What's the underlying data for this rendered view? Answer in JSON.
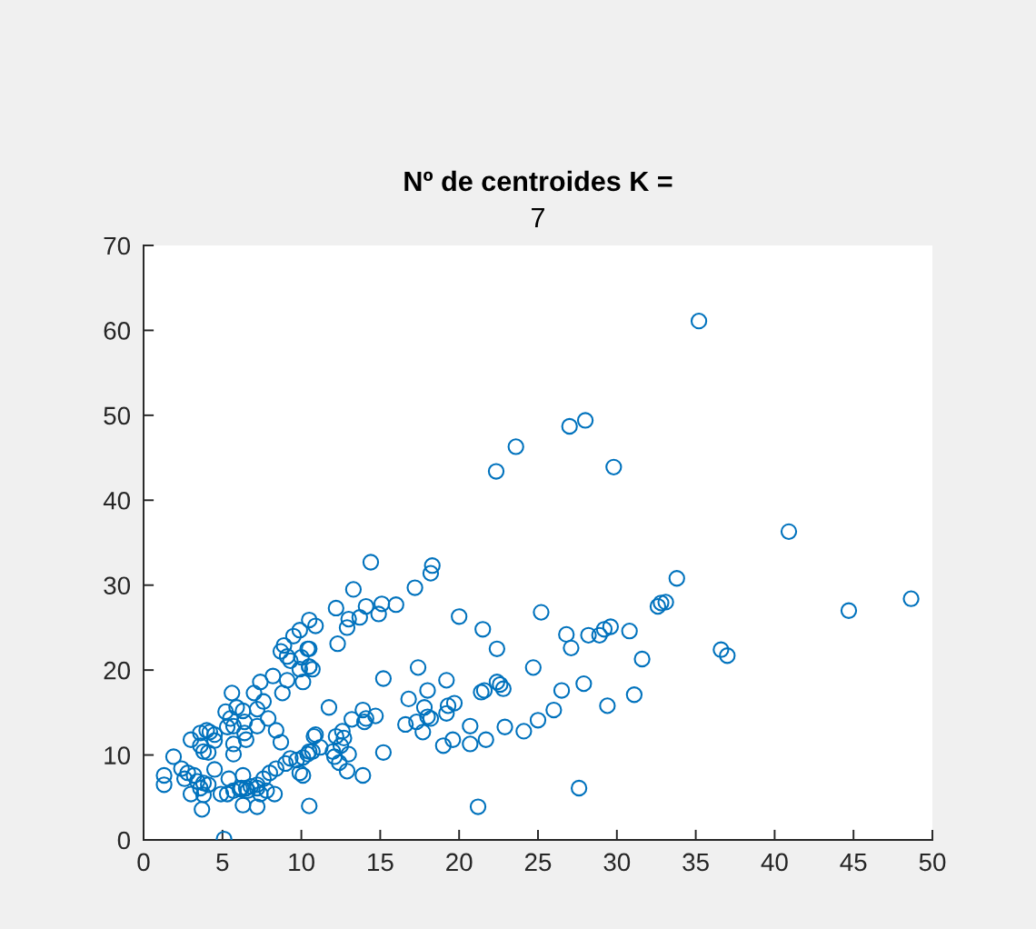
{
  "chart_data": {
    "type": "scatter",
    "title": "Nº de centroides K =",
    "subtitle": "7",
    "x": [
      35.2,
      22.35,
      23.6,
      27.0,
      28.0,
      29.8,
      40.9,
      48.65,
      44.7,
      25.2,
      32.6,
      32.8,
      33.1,
      33.8,
      21.5,
      26.8,
      28.2,
      28.9,
      29.2,
      29.6,
      30.8,
      27.1,
      22.4,
      36.6,
      37.0,
      31.6,
      24.7,
      22.4,
      22.6,
      22.8,
      21.6,
      21.4,
      26.5,
      27.9,
      31.1,
      29.4,
      26.0,
      25.0,
      22.9,
      24.1,
      21.7,
      27.6,
      21.2,
      14.4,
      18.3,
      18.2,
      17.2,
      13.3,
      12.2,
      14.1,
      15.1,
      16.0,
      14.9,
      13.7,
      13.0,
      12.9,
      12.3,
      10.5,
      10.9,
      10.5,
      10.5,
      10.7,
      20.0,
      15.2,
      17.4,
      19.2,
      16.8,
      18.0,
      17.8,
      18.0,
      18.2,
      16.6,
      17.3,
      17.7,
      19.3,
      19.7,
      19.2,
      20.7,
      19.6,
      19.0,
      20.7,
      11.75,
      13.9,
      14.1,
      14.0,
      14.7,
      13.2,
      12.6,
      12.2,
      12.7,
      12.5,
      13.0,
      12.4,
      12.9,
      13.9,
      12.0,
      12.1,
      10.8,
      11.2,
      10.5,
      15.2,
      10.5,
      9.9,
      9.5,
      10.4,
      10.0,
      10.5,
      9.9,
      8.9,
      8.7,
      9.1,
      9.3,
      8.2,
      9.1,
      8.8,
      10.1,
      7.4,
      7.0,
      7.6,
      7.9,
      5.6,
      5.9,
      6.3,
      6.4,
      5.2,
      5.5,
      5.3,
      6.4,
      6.5,
      5.7,
      7.2,
      8.4,
      8.7,
      7.2,
      3.0,
      3.6,
      4.0,
      4.2,
      4.5,
      4.5,
      3.6,
      3.8,
      4.1,
      5.7,
      1.9,
      1.3,
      1.3,
      2.4,
      2.8,
      2.6,
      3.2,
      3.4,
      3.8,
      3.6,
      4.1,
      3.0,
      3.8,
      3.7,
      4.5,
      5.4,
      4.9,
      5.3,
      5.7,
      6.1,
      6.5,
      6.8,
      7.2,
      7.6,
      8.0,
      8.4,
      9.0,
      9.3,
      9.7,
      10.1,
      10.4,
      10.7,
      10.9,
      6.3,
      6.2,
      6.6,
      7.2,
      7.8,
      8.3,
      7.4,
      6.3,
      7.2,
      5.1,
      9.9,
      10.1,
      5.7
    ],
    "values": [
      61.1,
      43.4,
      46.3,
      48.7,
      49.4,
      43.9,
      36.3,
      28.4,
      27.0,
      26.8,
      27.5,
      27.9,
      28.0,
      30.8,
      24.8,
      24.2,
      24.1,
      24.1,
      24.8,
      25.1,
      24.6,
      22.6,
      22.5,
      22.4,
      21.7,
      21.3,
      20.3,
      18.6,
      18.3,
      17.8,
      17.6,
      17.4,
      17.6,
      18.4,
      17.1,
      15.8,
      15.3,
      14.1,
      13.3,
      12.8,
      11.8,
      6.1,
      3.9,
      32.7,
      32.3,
      31.4,
      29.7,
      29.5,
      27.3,
      27.5,
      27.8,
      27.7,
      26.6,
      26.2,
      26.0,
      25.0,
      23.1,
      25.9,
      25.2,
      22.5,
      20.4,
      20.1,
      26.3,
      19.0,
      20.3,
      18.8,
      16.6,
      17.6,
      15.6,
      14.5,
      14.3,
      13.6,
      13.9,
      12.7,
      15.8,
      16.1,
      14.9,
      13.4,
      11.8,
      11.1,
      11.3,
      15.6,
      15.3,
      14.3,
      13.9,
      14.6,
      14.2,
      12.8,
      12.2,
      12.0,
      11.1,
      10.1,
      9.1,
      8.1,
      7.6,
      10.4,
      9.8,
      12.2,
      10.9,
      10.4,
      10.3,
      4.0,
      24.7,
      24.0,
      22.5,
      21.5,
      20.4,
      20.1,
      22.9,
      22.2,
      21.6,
      21.1,
      19.3,
      18.8,
      17.3,
      18.6,
      18.6,
      17.3,
      16.3,
      14.3,
      17.3,
      15.6,
      15.2,
      13.9,
      15.1,
      14.3,
      13.3,
      12.6,
      11.8,
      13.4,
      13.4,
      12.9,
      11.5,
      15.4,
      11.8,
      12.6,
      12.9,
      12.7,
      12.4,
      11.7,
      11.1,
      10.4,
      10.3,
      10.1,
      9.8,
      7.6,
      6.5,
      8.4,
      7.9,
      7.2,
      7.6,
      6.9,
      6.7,
      6.1,
      6.5,
      5.4,
      5.3,
      3.6,
      8.3,
      7.2,
      5.4,
      5.4,
      5.8,
      6.0,
      6.1,
      6.3,
      6.5,
      7.2,
      7.9,
      8.4,
      9.0,
      9.6,
      9.4,
      9.7,
      10.1,
      10.4,
      12.4,
      7.6,
      6.1,
      5.8,
      6.1,
      5.8,
      5.4,
      5.4,
      4.1,
      3.9,
      0.1,
      7.9,
      7.6,
      11.3
    ],
    "color": "#0072bd",
    "marker": "circle",
    "xlim": [
      0,
      50
    ],
    "xticks": [
      0,
      5,
      10,
      15,
      20,
      25,
      30,
      35,
      40,
      45,
      50
    ],
    "ylim": [
      0,
      70
    ],
    "yticks": [
      0,
      10,
      20,
      30,
      40,
      50,
      60,
      70
    ],
    "grid": false
  }
}
